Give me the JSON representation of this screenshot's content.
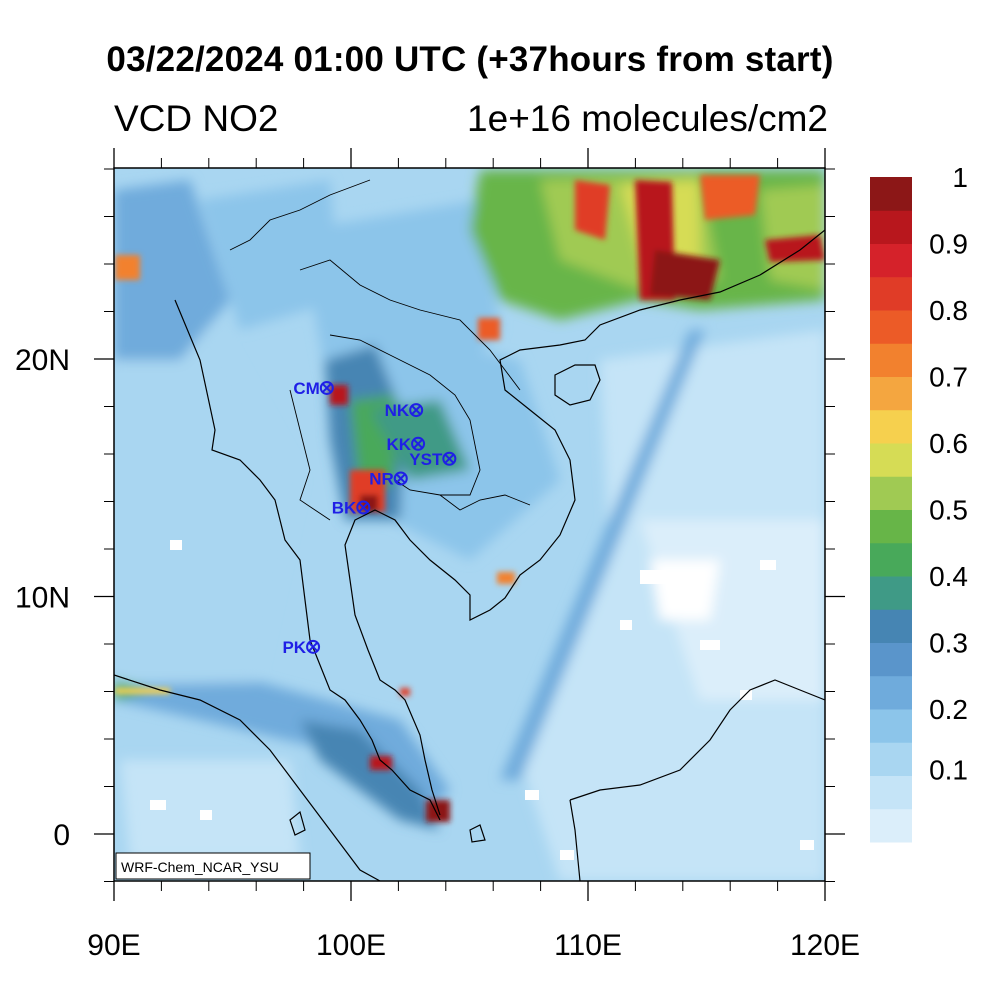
{
  "title": "03/22/2024 01:00 UTC (+37hours from start)",
  "variable": "VCD NO2",
  "units": "1e+16 molecules/cm2",
  "credit": "WRF-Chem_NCAR_YSU",
  "x_ticks": [
    {
      "value": 90,
      "label": "90E"
    },
    {
      "value": 100,
      "label": "100E"
    },
    {
      "value": 110,
      "label": "110E"
    },
    {
      "value": 120,
      "label": "120E"
    }
  ],
  "y_ticks": [
    {
      "value": 0,
      "label": "0"
    },
    {
      "value": 10,
      "label": "10N"
    },
    {
      "value": 20,
      "label": "20N"
    }
  ],
  "colorbar": {
    "colors": [
      "#dbeefa",
      "#c5e4f7",
      "#a9d6f1",
      "#8cc5ea",
      "#6fabdc",
      "#5a95cb",
      "#4685b3",
      "#3f9a86",
      "#48a95a",
      "#67b548",
      "#a0ca53",
      "#d6dc55",
      "#f6d04e",
      "#f4a640",
      "#f2812e",
      "#ec5b27",
      "#e03c27",
      "#d5222a",
      "#b8171d",
      "#8c1717"
    ],
    "labels": [
      {
        "index": 2,
        "label": "0.1"
      },
      {
        "index": 4,
        "label": "0.2"
      },
      {
        "index": 6,
        "label": "0.3"
      },
      {
        "index": 8,
        "label": "0.4"
      },
      {
        "index": 10,
        "label": "0.5"
      },
      {
        "index": 12,
        "label": "0.6"
      },
      {
        "index": 14,
        "label": "0.7"
      },
      {
        "index": 16,
        "label": "0.8"
      },
      {
        "index": 18,
        "label": "0.9"
      },
      {
        "index": 20,
        "label": "1"
      }
    ]
  },
  "stations": [
    {
      "code": "CM",
      "lon": 98.98,
      "lat": 18.78
    },
    {
      "code": "NK",
      "lon": 102.75,
      "lat": 17.85
    },
    {
      "code": "KK",
      "lon": 102.83,
      "lat": 16.43
    },
    {
      "code": "YST",
      "lon": 104.15,
      "lat": 15.8
    },
    {
      "code": "NR",
      "lon": 102.1,
      "lat": 14.97
    },
    {
      "code": "BK",
      "lon": 100.52,
      "lat": 13.75
    },
    {
      "code": "PK",
      "lon": 98.4,
      "lat": 7.88
    }
  ],
  "colors": {
    "station": "#1f1fe6"
  }
}
